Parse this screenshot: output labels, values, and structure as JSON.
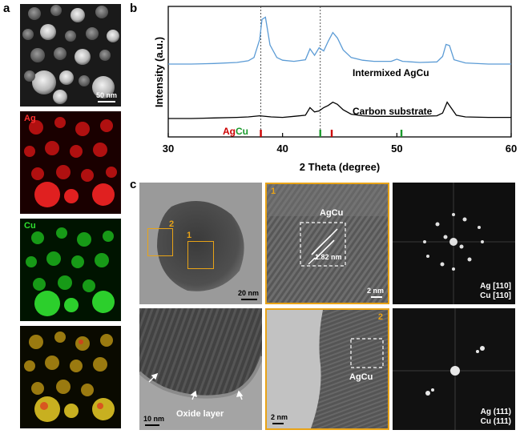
{
  "panels": {
    "a": "a",
    "b": "b",
    "c": "c"
  },
  "panel_a": {
    "scalebar": "50 nm",
    "ag_label": "Ag",
    "cu_label": "Cu"
  },
  "chart_data": {
    "type": "line",
    "xlabel": "2 Theta (degree)",
    "ylabel": "Intensity (a.u.)",
    "xlim": [
      30,
      60
    ],
    "xticks": [
      30,
      40,
      50,
      60
    ],
    "series": [
      {
        "name": "Intermixed AgCu",
        "color": "#5b9bd5",
        "x": [
          30,
          32,
          34,
          36,
          37,
          37.5,
          38,
          38.2,
          38.5,
          38.9,
          39.5,
          40,
          41,
          42,
          42.4,
          42.8,
          43.2,
          43.6,
          44,
          44.4,
          44.8,
          45.3,
          46,
          47,
          48,
          49.5,
          50,
          50.5,
          52,
          53.5,
          54,
          54.3,
          54.6,
          55,
          56,
          58,
          60
        ],
        "y": [
          1.0,
          1.0,
          1.01,
          1.03,
          1.06,
          1.12,
          1.45,
          1.82,
          1.86,
          1.35,
          1.12,
          1.07,
          1.05,
          1.08,
          1.28,
          1.16,
          1.3,
          1.24,
          1.42,
          1.58,
          1.48,
          1.26,
          1.12,
          1.07,
          1.05,
          1.05,
          1.09,
          1.05,
          1.03,
          1.04,
          1.14,
          1.36,
          1.34,
          1.08,
          1.02,
          1.0,
          1.0
        ]
      },
      {
        "name": "Carbon substrate",
        "color": "#000000",
        "x": [
          30,
          32,
          34,
          36,
          37,
          38,
          39,
          40,
          41,
          42,
          42.4,
          42.8,
          43.2,
          43.6,
          44,
          44.4,
          44.8,
          45.3,
          46,
          47,
          48,
          50,
          52,
          53.5,
          54,
          54.4,
          54.8,
          55.2,
          56,
          58,
          60
        ],
        "y": [
          0.0,
          0.0,
          0.01,
          0.02,
          0.03,
          0.05,
          0.03,
          0.02,
          0.04,
          0.06,
          0.2,
          0.12,
          0.14,
          0.2,
          0.24,
          0.3,
          0.26,
          0.16,
          0.08,
          0.05,
          0.04,
          0.04,
          0.04,
          0.05,
          0.1,
          0.3,
          0.18,
          0.06,
          0.03,
          0.02,
          0.02
        ]
      }
    ],
    "reference_lines": [
      38.1,
      43.3
    ],
    "reference_ticks": [
      {
        "label": "Ag",
        "color": "#cc0000",
        "x": [
          38.1,
          44.3
        ]
      },
      {
        "label": "Cu",
        "color": "#1a9a2c",
        "x": [
          43.3,
          50.4
        ]
      }
    ],
    "ref_label_ag": "Ag",
    "ref_label_cu": "Cu"
  },
  "panel_c": {
    "tem_top": {
      "box1": "1",
      "box2": "2",
      "scalebar": "20 nm"
    },
    "hr1": {
      "tag": "1",
      "label": "AgCu",
      "spacing": "1.82 nm",
      "scalebar": "2 nm"
    },
    "fft1": {
      "line1": "Ag [110]",
      "line2": "Cu [110]"
    },
    "tem_bottom": {
      "caption": "Oxide layer",
      "scalebar": "10 nm"
    },
    "hr2": {
      "tag": "2",
      "label": "AgCu",
      "scalebar": "2 nm"
    },
    "fft2": {
      "line1": "Ag (111)",
      "line2": "Cu (111)"
    }
  }
}
